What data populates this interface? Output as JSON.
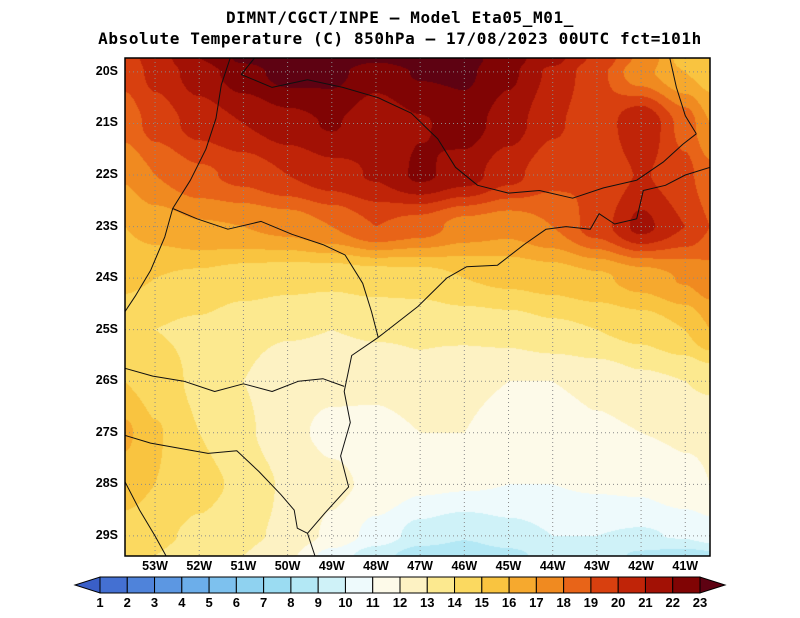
{
  "header": {
    "title_line1": "DIMNT/CGCT/INPE —  Model Eta05_M01_",
    "title_line2": "Absolute Temperature (C) 850hPa —  17/08/2023 00UTC fct=101h"
  },
  "chart_data": {
    "type": "heatmap",
    "title": "DIMNT/CGCT/INPE —  Model Eta05_M01_",
    "subtitle": "Absolute Temperature (C) 850hPa —  17/08/2023 00UTC fct=101h",
    "variable": "Absolute Temperature (C) 850hPa",
    "model": "Eta05_M01_",
    "valid_time": "17/08/2023 00UTC fct=101h",
    "x_ticks": [
      "53W",
      "52W",
      "51W",
      "50W",
      "49W",
      "48W",
      "47W",
      "46W",
      "45W",
      "44W",
      "43W",
      "42W",
      "41W"
    ],
    "y_ticks": [
      "20S",
      "21S",
      "22S",
      "23S",
      "24S",
      "25S",
      "26S",
      "27S",
      "28S",
      "29S"
    ],
    "lon_range_w": [
      53.68,
      40.44
    ],
    "lat_range_s": [
      19.73,
      29.39
    ],
    "grid_on": true,
    "colorbar": {
      "unit": "C",
      "levels": [
        1,
        2,
        3,
        4,
        5,
        6,
        7,
        8,
        9,
        10,
        11,
        12,
        13,
        14,
        15,
        16,
        17,
        18,
        19,
        20,
        21,
        22,
        23
      ],
      "colors": [
        "#3a5fc8",
        "#4470d2",
        "#4f83da",
        "#5c97e2",
        "#6caeea",
        "#7dc1ee",
        "#8fd2f0",
        "#9bdcf2",
        "#b3e8f5",
        "#cff2f8",
        "#eefafc",
        "#fdfae9",
        "#fdf2c3",
        "#fce98f",
        "#fbd960",
        "#f9c440",
        "#f6a92e",
        "#f08a20",
        "#e86418",
        "#d8400f",
        "#c02408",
        "#a21105",
        "#800404",
        "#5e0212"
      ]
    },
    "grid": {
      "lats_s": [
        19.73,
        20,
        21,
        22,
        23,
        24,
        25,
        26,
        27,
        28,
        29,
        29.39
      ],
      "lons_w": [
        53.68,
        53,
        52,
        51,
        50,
        49,
        48,
        47,
        46,
        45,
        44,
        43,
        42,
        41,
        40.44
      ],
      "values_c": [
        [
          19.5,
          20.5,
          22.0,
          23.2,
          23.6,
          23.6,
          23.2,
          23.5,
          23.4,
          22.4,
          21.3,
          19.8,
          17.8,
          15.6,
          15.2
        ],
        [
          19.3,
          20.3,
          21.5,
          22.6,
          23.4,
          23.3,
          22.4,
          23.1,
          23.2,
          22.2,
          20.8,
          19.3,
          17.3,
          16.0,
          15.5
        ],
        [
          18.4,
          19.4,
          20.4,
          21.0,
          21.6,
          22.1,
          21.3,
          21.9,
          22.5,
          21.5,
          20.2,
          19.2,
          21.0,
          18.6,
          17.0
        ],
        [
          17.1,
          18.0,
          18.8,
          19.3,
          20.0,
          20.6,
          21.1,
          22.2,
          21.5,
          20.3,
          19.3,
          19.0,
          20.1,
          19.3,
          18.3
        ],
        [
          16.0,
          16.4,
          16.9,
          17.0,
          17.3,
          18.0,
          19.0,
          18.5,
          17.6,
          17.3,
          18.0,
          19.5,
          21.3,
          20.0,
          19.0
        ],
        [
          15.2,
          15.0,
          14.8,
          14.5,
          14.3,
          14.2,
          14.4,
          14.5,
          15.0,
          15.2,
          15.4,
          15.8,
          16.4,
          17.1,
          17.6
        ],
        [
          14.3,
          14.0,
          13.8,
          13.3,
          13.1,
          13.0,
          13.1,
          13.1,
          13.2,
          13.4,
          13.8,
          14.0,
          14.3,
          15.0,
          16.0
        ],
        [
          15.0,
          14.5,
          13.8,
          13.0,
          12.3,
          12.2,
          12.4,
          12.8,
          12.3,
          12.0,
          12.0,
          12.3,
          12.8,
          13.0,
          13.2
        ],
        [
          16.2,
          15.1,
          14.0,
          13.2,
          12.2,
          11.8,
          11.5,
          12.0,
          12.0,
          11.4,
          11.2,
          11.8,
          12.0,
          12.1,
          12.1
        ],
        [
          15.5,
          15.0,
          14.3,
          13.8,
          12.8,
          12.2,
          11.8,
          11.2,
          11.1,
          11.0,
          11.0,
          11.1,
          11.2,
          11.8,
          12.0
        ],
        [
          14.5,
          14.2,
          13.8,
          13.2,
          12.8,
          11.8,
          10.6,
          9.6,
          9.1,
          9.6,
          10.0,
          10.0,
          9.9,
          10.1,
          10.5
        ],
        [
          14.0,
          14.0,
          13.5,
          13.0,
          12.2,
          10.6,
          9.4,
          8.4,
          8.3,
          8.7,
          9.4,
          9.6,
          8.8,
          8.5,
          8.7
        ]
      ]
    },
    "map_outlines": {
      "coastline": [
        [
          40.44,
          21.85
        ],
        [
          41.0,
          22.0
        ],
        [
          41.45,
          22.2
        ],
        [
          41.95,
          22.3
        ],
        [
          42.1,
          22.85
        ],
        [
          42.6,
          22.95
        ],
        [
          42.95,
          22.75
        ],
        [
          43.15,
          23.05
        ],
        [
          43.7,
          23.0
        ],
        [
          44.15,
          23.05
        ],
        [
          44.65,
          23.35
        ],
        [
          45.25,
          23.75
        ],
        [
          45.95,
          23.78
        ],
        [
          46.4,
          24.0
        ],
        [
          47.05,
          24.55
        ],
        [
          47.95,
          25.15
        ],
        [
          48.55,
          25.5
        ],
        [
          48.72,
          26.2
        ],
        [
          48.58,
          26.8
        ],
        [
          48.8,
          27.45
        ],
        [
          48.62,
          28.05
        ],
        [
          49.15,
          28.55
        ],
        [
          49.55,
          28.95
        ],
        [
          49.38,
          29.39
        ]
      ],
      "parana_river": [
        [
          51.3,
          19.73
        ],
        [
          51.5,
          20.25
        ],
        [
          51.62,
          20.9
        ],
        [
          51.85,
          21.5
        ],
        [
          52.2,
          22.1
        ],
        [
          52.6,
          22.65
        ],
        [
          52.78,
          23.2
        ],
        [
          53.1,
          23.85
        ],
        [
          53.45,
          24.35
        ],
        [
          53.68,
          24.65
        ]
      ],
      "paranaiba_river": [
        [
          51.05,
          20.05
        ],
        [
          50.75,
          19.73
        ]
      ],
      "mg_sp_rj_border": [
        [
          51.05,
          20.05
        ],
        [
          50.35,
          20.3
        ],
        [
          49.55,
          20.15
        ],
        [
          48.75,
          20.3
        ],
        [
          47.95,
          20.5
        ],
        [
          47.2,
          20.8
        ],
        [
          46.6,
          21.3
        ],
        [
          46.2,
          21.85
        ],
        [
          45.7,
          22.2
        ],
        [
          45.0,
          22.35
        ],
        [
          44.3,
          22.3
        ],
        [
          43.55,
          22.45
        ],
        [
          42.85,
          22.25
        ],
        [
          42.1,
          22.1
        ],
        [
          41.5,
          21.75
        ],
        [
          41.05,
          21.4
        ],
        [
          40.75,
          21.2
        ]
      ],
      "mg_es_border": [
        [
          41.35,
          19.73
        ],
        [
          41.2,
          20.3
        ],
        [
          41.0,
          20.85
        ],
        [
          40.75,
          21.2
        ]
      ],
      "sp_pr_border": [
        [
          52.6,
          22.65
        ],
        [
          52.05,
          22.85
        ],
        [
          51.35,
          23.05
        ],
        [
          50.6,
          22.9
        ],
        [
          49.9,
          23.15
        ],
        [
          49.2,
          23.35
        ],
        [
          48.7,
          23.55
        ],
        [
          48.3,
          24.1
        ],
        [
          48.1,
          24.65
        ],
        [
          47.95,
          25.15
        ]
      ],
      "pr_sc_border": [
        [
          53.68,
          25.75
        ],
        [
          53.05,
          25.9
        ],
        [
          52.35,
          26.0
        ],
        [
          51.65,
          26.2
        ],
        [
          51.0,
          26.05
        ],
        [
          50.35,
          26.2
        ],
        [
          49.75,
          26.0
        ],
        [
          49.2,
          25.95
        ],
        [
          48.72,
          26.1
        ]
      ],
      "sc_rs_border": [
        [
          53.68,
          27.05
        ],
        [
          53.1,
          27.2
        ],
        [
          52.45,
          27.3
        ],
        [
          51.8,
          27.4
        ],
        [
          51.15,
          27.35
        ],
        [
          50.65,
          27.75
        ],
        [
          50.15,
          28.2
        ],
        [
          49.85,
          28.5
        ],
        [
          49.78,
          28.85
        ],
        [
          49.55,
          28.95
        ]
      ],
      "uruguay_river": [
        [
          53.68,
          27.95
        ],
        [
          53.35,
          28.5
        ],
        [
          53.0,
          29.0
        ],
        [
          52.75,
          29.39
        ]
      ]
    }
  }
}
